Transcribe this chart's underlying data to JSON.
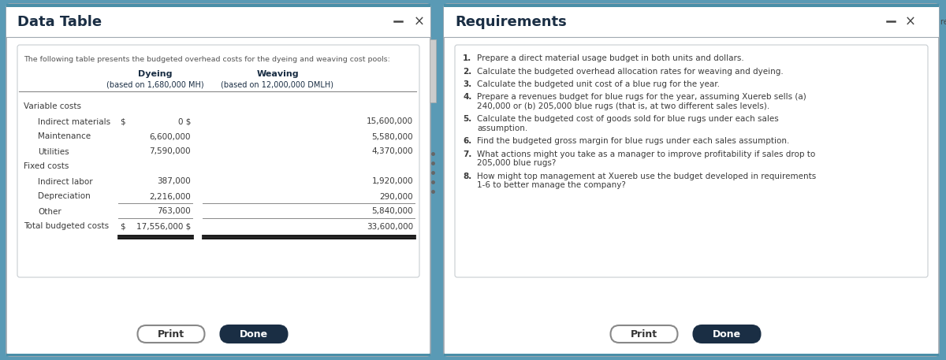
{
  "left_panel": {
    "title": "Data Table",
    "subtitle": "The following table presents the budgeted overhead costs for the dyeing and weaving cost pools:",
    "col1_header": "Dyeing",
    "col1_subheader": "(based on 1,680,000 MH)",
    "col2_header": "Weaving",
    "col2_subheader": "(based on 12,000,000 DMLH)",
    "sections": [
      {
        "section_label": "Variable costs",
        "rows": [
          {
            "label": "Indirect materials",
            "has_dollar": true,
            "dyeing": "0 $",
            "weaving": "15,600,000"
          },
          {
            "label": "Maintenance",
            "has_dollar": false,
            "dyeing": "6,600,000",
            "weaving": "5,580,000"
          },
          {
            "label": "Utilities",
            "has_dollar": false,
            "dyeing": "7,590,000",
            "weaving": "4,370,000"
          }
        ]
      },
      {
        "section_label": "Fixed costs",
        "rows": [
          {
            "label": "Indirect labor",
            "has_dollar": false,
            "dyeing": "387,000",
            "weaving": "1,920,000"
          },
          {
            "label": "Depreciation",
            "has_dollar": false,
            "dyeing": "2,216,000",
            "weaving": "290,000"
          },
          {
            "label": "Other",
            "has_dollar": false,
            "dyeing": "763,000",
            "weaving": "5,840,000"
          }
        ]
      }
    ],
    "total_label": "Total budgeted costs",
    "total_dyeing": "17,556,000 $",
    "total_weaving": "33,600,000"
  },
  "right_panel": {
    "title": "Requirements",
    "corner_text": "reave a rug at",
    "items": [
      {
        "num": "1.",
        "text": "Prepare a direct material usage budget in both units and dollars."
      },
      {
        "num": "2.",
        "text": "Calculate the budgeted overhead allocation rates for weaving and dyeing."
      },
      {
        "num": "3.",
        "text": "Calculate the budgeted unit cost of a blue rug for the year."
      },
      {
        "num": "4.",
        "text": "Prepare a revenues budget for blue rugs for the year, assuming Xuereb sells (a)\n240,000 or (b) 205,000 blue rugs (that is, at two different sales levels)."
      },
      {
        "num": "5.",
        "text": "Calculate the budgeted cost of goods sold for blue rugs under each sales\nassumption."
      },
      {
        "num": "6.",
        "text": "Find the budgeted gross margin for blue rugs under each sales assumption."
      },
      {
        "num": "7.",
        "text": "What actions might you take as a manager to improve profitability if sales drop to\n205,000 blue rugs?"
      },
      {
        "num": "8.",
        "text": "How might top management at Xuereb use the budget developed in requirements\n1-6 to better manage the company?"
      }
    ]
  },
  "bg_color": "#5a9ab5",
  "panel_outer_bg": "#f0f0f0",
  "panel_white": "#ffffff",
  "title_color": "#1a2e44",
  "text_color": "#3a3a3a",
  "header_color": "#1a2e44",
  "teal_bar": "#4a8fa8",
  "border_color": "#a0a8b0",
  "button_done_bg": "#1a2e44",
  "button_done_fg": "#ffffff",
  "button_print_bg": "#ffffff",
  "button_print_fg": "#333333",
  "button_border": "#888888"
}
